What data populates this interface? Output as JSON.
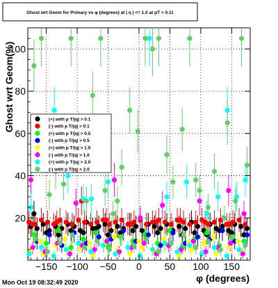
{
  "chart_data": {
    "type": "scatter",
    "title": "Ghost wrt Geom for Primary vs φ (degrees) at | η | <= 1.0 at pT > 0.11",
    "xlabel": "φ (degrees)",
    "ylabel": "Ghost wrt Geom(%)",
    "xlim": [
      -180,
      180
    ],
    "ylim": [
      0,
      110
    ],
    "xticks": [
      -150,
      -100,
      -50,
      0,
      50,
      100,
      150
    ],
    "yticks": [
      20,
      40,
      60,
      80,
      100
    ],
    "grid": true,
    "legend_position": "middle-left",
    "series": [
      {
        "name": "(+) with p T/|q| > 0.1",
        "color": "#000000",
        "marker": "circle",
        "x": [
          -175,
          -165,
          -155,
          -145,
          -135,
          -125,
          -115,
          -105,
          -95,
          -85,
          -75,
          -65,
          -55,
          -45,
          -35,
          -25,
          -15,
          -5,
          5,
          15,
          25,
          35,
          45,
          55,
          65,
          75,
          85,
          95,
          105,
          115,
          125,
          135,
          145,
          155,
          165,
          175,
          -170,
          -150,
          -130,
          -110,
          -90,
          -70,
          -50,
          -30,
          -10,
          10,
          30,
          50,
          70,
          90,
          110,
          130,
          150,
          170
        ],
        "y": [
          16,
          15,
          17,
          14,
          16,
          15,
          17,
          16,
          14,
          18,
          15,
          16,
          17,
          14,
          16,
          15,
          17,
          16,
          14,
          17,
          16,
          15,
          17,
          14,
          16,
          15,
          18,
          16,
          14,
          17,
          15,
          16,
          14,
          17,
          16,
          15,
          22,
          13,
          12,
          14,
          13,
          15,
          12,
          13,
          14,
          12,
          13,
          14,
          12,
          13,
          12,
          14,
          13,
          12
        ]
      },
      {
        "name": "(-) with p T/|q| > 0.1",
        "color": "#ff0000",
        "marker": "circle",
        "x": [
          -178,
          -168,
          -158,
          -148,
          -138,
          -128,
          -118,
          -108,
          -98,
          -88,
          -78,
          -68,
          -58,
          -48,
          -38,
          -28,
          -18,
          -8,
          2,
          12,
          22,
          32,
          42,
          52,
          62,
          72,
          82,
          92,
          102,
          112,
          122,
          132,
          142,
          152,
          162,
          172,
          -173,
          -133,
          -93,
          -53,
          -13,
          27,
          67,
          107,
          147
        ],
        "y": [
          18,
          17,
          19,
          18,
          17,
          19,
          18,
          17,
          19,
          18,
          17,
          18,
          19,
          17,
          18,
          19,
          17,
          18,
          19,
          17,
          18,
          19,
          18,
          17,
          19,
          18,
          17,
          18,
          19,
          17,
          18,
          19,
          17,
          18,
          19,
          17,
          17,
          18,
          28,
          19,
          17,
          18,
          19,
          18,
          17
        ]
      },
      {
        "name": "(+) with p T/|q| > 0.5",
        "color": "#00ff00",
        "marker": "circle",
        "x": [
          -170,
          -150,
          -130,
          -110,
          -90,
          -70,
          -50,
          -30,
          -10,
          10,
          30,
          50,
          70,
          90,
          110,
          130,
          150,
          170
        ],
        "y": [
          12,
          8,
          14,
          6,
          10,
          13,
          7,
          11,
          9,
          12,
          8,
          14,
          6,
          10,
          13,
          7,
          11,
          9
        ]
      },
      {
        "name": "(-) with p T/|q| > 0.5",
        "color": "#0000ff",
        "marker": "circle",
        "x": [
          -165,
          -145,
          -125,
          -105,
          -85,
          -65,
          -45,
          -25,
          -5,
          15,
          35,
          55,
          75,
          95,
          115,
          135,
          155,
          175
        ],
        "y": [
          9,
          12,
          7,
          13,
          8,
          11,
          10,
          14,
          9,
          12,
          7,
          13,
          8,
          11,
          10,
          14,
          9,
          12
        ]
      },
      {
        "name": "(+) with p T/|q| > 1.0",
        "color": "#ffff00",
        "marker": "circle",
        "x": [
          -175,
          -155,
          -135,
          -115,
          -95,
          -75,
          -55,
          -35,
          -15,
          5,
          25,
          45,
          65,
          85,
          105,
          125,
          145,
          165,
          -160,
          -120,
          -80,
          -40,
          0,
          40,
          80,
          120,
          160
        ],
        "y": [
          5,
          3,
          7,
          4,
          6,
          2,
          8,
          5,
          3,
          6,
          4,
          7,
          2,
          5,
          8,
          3,
          6,
          4,
          9,
          10,
          8,
          11,
          9,
          10,
          8,
          11,
          9
        ]
      },
      {
        "name": "(-) with p T/|q| > 1.0",
        "color": "#ff00ff",
        "marker": "circle",
        "x": [
          -172,
          -152,
          -132,
          -112,
          -92,
          -72,
          -52,
          -32,
          -12,
          8,
          28,
          48,
          68,
          88,
          108,
          128,
          148,
          168,
          -175,
          -102,
          -40,
          2,
          38,
          98,
          145,
          170
        ],
        "y": [
          6,
          4,
          8,
          3,
          7,
          5,
          9,
          4,
          6,
          8,
          3,
          7,
          5,
          9,
          4,
          6,
          8,
          3,
          38,
          27,
          38,
          20,
          26,
          28,
          33,
          22
        ]
      },
      {
        "name": "(+) with p T/|q| > 2.0",
        "color": "#00ffff",
        "marker": "circle",
        "x": [
          -178,
          -158,
          -138,
          -118,
          -98,
          -78,
          -58,
          -38,
          -18,
          2,
          22,
          42,
          62,
          82,
          102,
          122,
          142,
          162,
          -175,
          -137,
          -115,
          -90,
          -77,
          -50,
          17,
          45,
          77,
          110,
          128,
          143,
          158,
          172
        ],
        "y": [
          3,
          6,
          2,
          5,
          8,
          4,
          7,
          3,
          6,
          2,
          5,
          8,
          4,
          7,
          3,
          6,
          2,
          5,
          25,
          71,
          40,
          29,
          29,
          37,
          105,
          30,
          37,
          22,
          30,
          71,
          30,
          38
        ]
      },
      {
        "name": "(-) with p T/|q| > 2.0",
        "color": "#66cc66",
        "marker": "circle",
        "x": [
          -168,
          -148,
          -128,
          -108,
          -88,
          -68,
          -48,
          -28,
          -8,
          12,
          32,
          52,
          72,
          92,
          112,
          132,
          152,
          172,
          -170,
          -158,
          -145,
          -135,
          -122,
          -110,
          -98,
          -85,
          -75,
          -62,
          -55,
          -42,
          -35,
          -28,
          -15,
          -2,
          10,
          22,
          32,
          45,
          55,
          70,
          82,
          92,
          98,
          112,
          122,
          138,
          143,
          156,
          166,
          175
        ],
        "y": [
          10,
          4,
          8,
          12,
          6,
          9,
          5,
          11,
          7,
          10,
          4,
          8,
          12,
          6,
          9,
          5,
          11,
          7,
          92,
          105,
          31,
          42,
          36,
          105,
          60,
          28,
          78,
          105,
          33,
          22,
          28,
          44,
          71,
          61,
          105,
          100,
          105,
          50,
          37,
          62,
          105,
          38,
          33,
          25,
          42,
          20,
          65,
          28,
          105,
          45
        ]
      }
    ]
  },
  "footer": {
    "timestamp": "Mon Oct 19 08:32:49 2020"
  },
  "colors": {
    "background": "#ffffff",
    "axis": "#000000"
  }
}
